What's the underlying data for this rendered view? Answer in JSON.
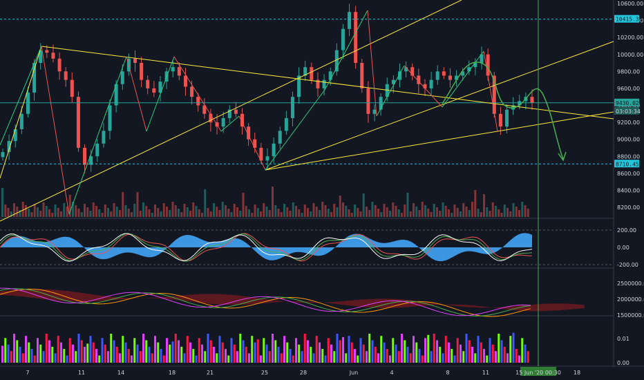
{
  "chart_data": {
    "type": "candlestick",
    "instrument_hint": "price chart with volume, oscillator, cloud and histogram sub-panes",
    "price_axis": {
      "ticks": [
        "10600.00",
        "10400.00",
        "10200.00",
        "10000.00",
        "9800.00",
        "9600.00",
        "9400.00",
        "9200.00",
        "9000.00",
        "8800.00",
        "8600.00",
        "8400.00",
        "8200.00"
      ],
      "tick_values": [
        10600,
        10400,
        10200,
        10000,
        9800,
        9600,
        9400,
        9200,
        9000,
        8800,
        8600,
        8400,
        8200
      ],
      "range": [
        8100,
        10650
      ]
    },
    "price_levels": [
      {
        "label": "10415.33",
        "value": 10415.33,
        "style": "dashed",
        "color": "#26c6da"
      },
      {
        "label": "8710.45",
        "value": 8710.45,
        "style": "dashed",
        "color": "#26c6da"
      },
      {
        "label": "9430.02",
        "value": 9430.02,
        "style": "solid",
        "color": "#26a69a",
        "note": "03:03:34"
      }
    ],
    "x_axis": {
      "ticks": [
        "7",
        "11",
        "14",
        "18",
        "21",
        "25",
        "28",
        "Jun",
        "4",
        "8",
        "11",
        "15 Jun '20  00:30",
        "18"
      ],
      "cursor_label": "15 Jun '20  00:30"
    },
    "candles_close": [
      8850,
      8980,
      9120,
      9300,
      9550,
      9900,
      10050,
      10020,
      9950,
      9800,
      9700,
      9500,
      8900,
      8700,
      8800,
      8950,
      9100,
      9400,
      9650,
      9800,
      9950,
      9900,
      9700,
      9600,
      9550,
      9680,
      9800,
      9850,
      9750,
      9620,
      9500,
      9400,
      9300,
      9200,
      9150,
      9250,
      9350,
      9300,
      9150,
      9000,
      8900,
      8750,
      8800,
      8950,
      9100,
      9250,
      9500,
      9750,
      9850,
      9700,
      9600,
      9700,
      9800,
      10050,
      10300,
      10500,
      9900,
      9600,
      9300,
      9350,
      9500,
      9650,
      9700,
      9800,
      9850,
      9750,
      9650,
      9600,
      9700,
      9800,
      9750,
      9700,
      9750,
      9800,
      9850,
      9900,
      10000,
      9750,
      9300,
      9150,
      9350,
      9400,
      9450,
      9500,
      9430
    ],
    "price_series_range_note": "approximate closes read from candles, left to right",
    "volume_axis_label": "",
    "oscillator": {
      "ticks": [
        "200.00",
        "0.00",
        "-200.00"
      ],
      "tick_values": [
        200,
        0,
        -200
      ]
    },
    "cloud_panel": {
      "ticks": [
        "2500000.00",
        "2000000.00",
        "1500000.00"
      ],
      "tick_values": [
        2500000,
        2000000,
        1500000
      ]
    },
    "histogram_panel": {
      "ticks": [
        "0.01",
        "0.00"
      ],
      "tick_values": [
        0.01,
        0.0
      ]
    },
    "colors": {
      "background": "#131722",
      "up": "#26a69a",
      "down": "#ef5350",
      "trendline": "#ffeb3b",
      "zigzag_up": "#26d07c",
      "zigzag_down": "#ef5350",
      "projection": "#4caf50",
      "oscillator_fill": "#42a5f5",
      "histogram_a": "#e040fb",
      "histogram_b": "#76ff03",
      "histogram_c": "#3d5afe"
    }
  }
}
